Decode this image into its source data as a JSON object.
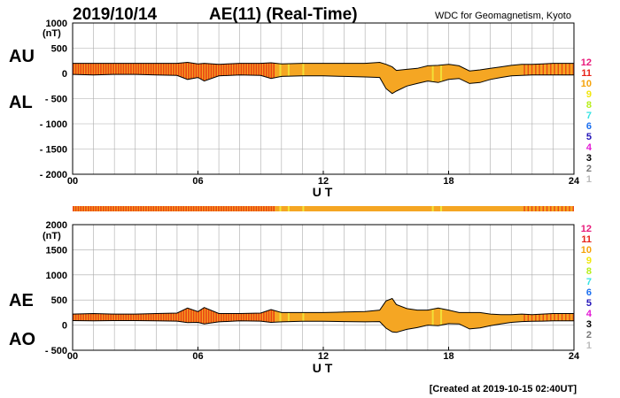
{
  "header": {
    "date": "2019/10/14",
    "title": "AE(11) (Real-Time)",
    "source": "WDC for Geomagnetism, Kyoto"
  },
  "footer": {
    "created": "[Created at 2019-10-15 02:40UT]"
  },
  "legend": {
    "items": [
      {
        "label": "12",
        "color": "#e8197a"
      },
      {
        "label": "11",
        "color": "#e8231a"
      },
      {
        "label": "10",
        "color": "#f5a30c"
      },
      {
        "label": "9",
        "color": "#f2e70e"
      },
      {
        "label": "8",
        "color": "#b7ee1a"
      },
      {
        "label": "7",
        "color": "#37e3e3"
      },
      {
        "label": "6",
        "color": "#1b6ff0"
      },
      {
        "label": "5",
        "color": "#2414b8"
      },
      {
        "label": "4",
        "color": "#e31ad5"
      },
      {
        "label": "3",
        "color": "#000000"
      },
      {
        "label": "2",
        "color": "#777777"
      },
      {
        "label": "1",
        "color": "#bbbbbb"
      }
    ]
  },
  "colors": {
    "fill_main": "#f5a623",
    "stripe_red": "#e82f10",
    "stripe_yellow": "#f2e53a",
    "grid": "#aaaaaa"
  },
  "chart_data": [
    {
      "type": "area",
      "panel": "AU/AL",
      "labels": {
        "upper": "AU",
        "lower": "AL"
      },
      "unit": "(nT)",
      "xlabel": "U T",
      "x_ticks": [
        "00",
        "06",
        "12",
        "18",
        "24"
      ],
      "xlim": [
        0,
        24
      ],
      "ylim": [
        -2000,
        1000
      ],
      "y_ticks": [
        1000,
        500,
        0,
        -500,
        -1000,
        -1500,
        -2000
      ],
      "y_tick_labels": [
        "1000",
        "500",
        "0",
        "- 500",
        "- 1000",
        "- 1500",
        "- 2000"
      ],
      "x_hours": [
        0,
        1,
        2,
        3,
        4,
        5,
        5.5,
        6,
        6.3,
        7,
        8,
        9,
        9.5,
        10,
        11,
        12,
        13,
        14,
        14.7,
        15,
        15.3,
        15.5,
        16,
        16.5,
        17,
        17.5,
        18,
        18.5,
        19,
        19.5,
        20,
        20.5,
        21,
        21.5,
        22,
        22.5,
        23,
        23.5,
        24
      ],
      "series": [
        {
          "name": "AU",
          "values": [
            200,
            200,
            200,
            200,
            200,
            200,
            220,
            190,
            200,
            180,
            200,
            200,
            210,
            190,
            200,
            200,
            200,
            200,
            220,
            180,
            130,
            60,
            80,
            100,
            150,
            160,
            180,
            150,
            50,
            70,
            100,
            130,
            160,
            180,
            180,
            190,
            200,
            200,
            200
          ]
        },
        {
          "name": "AL",
          "values": [
            -20,
            -30,
            -20,
            -20,
            -30,
            -40,
            -120,
            -80,
            -150,
            -50,
            -30,
            -40,
            -100,
            -60,
            -50,
            -50,
            -60,
            -70,
            -80,
            -300,
            -400,
            -350,
            -250,
            -200,
            -150,
            -180,
            -120,
            -100,
            -200,
            -180,
            -120,
            -80,
            -50,
            -40,
            -30,
            -30,
            -30,
            -30,
            -30
          ]
        }
      ]
    },
    {
      "type": "area",
      "panel": "AE/AO",
      "labels": {
        "upper": "AE",
        "lower": "AO"
      },
      "unit": "(nT)",
      "xlabel": "U T",
      "x_ticks": [
        "00",
        "06",
        "12",
        "18",
        "24"
      ],
      "xlim": [
        0,
        24
      ],
      "ylim": [
        -500,
        2000
      ],
      "y_ticks": [
        2000,
        1500,
        1000,
        500,
        0,
        -500
      ],
      "y_tick_labels": [
        "2000",
        "1500",
        "1000",
        "500",
        "0",
        "- 500"
      ],
      "x_hours": [
        0,
        1,
        2,
        3,
        4,
        5,
        5.5,
        6,
        6.3,
        7,
        8,
        9,
        9.5,
        10,
        11,
        12,
        13,
        14,
        14.7,
        15,
        15.3,
        15.5,
        16,
        16.5,
        17,
        17.5,
        18,
        18.5,
        19,
        19.5,
        20,
        20.5,
        21,
        21.5,
        22,
        22.5,
        23,
        23.5,
        24
      ],
      "series": [
        {
          "name": "AE",
          "values": [
            220,
            230,
            220,
            220,
            230,
            240,
            340,
            270,
            350,
            230,
            230,
            240,
            310,
            250,
            250,
            250,
            260,
            270,
            300,
            480,
            530,
            410,
            330,
            300,
            300,
            340,
            300,
            250,
            250,
            250,
            220,
            210,
            210,
            220,
            210,
            220,
            230,
            230,
            230
          ]
        },
        {
          "name": "AO",
          "values": [
            90,
            85,
            90,
            90,
            85,
            80,
            50,
            55,
            25,
            65,
            85,
            80,
            55,
            65,
            75,
            75,
            70,
            65,
            70,
            -60,
            -135,
            -145,
            -85,
            -50,
            0,
            -10,
            30,
            25,
            -75,
            -55,
            -10,
            25,
            55,
            70,
            75,
            80,
            85,
            85,
            85
          ]
        }
      ]
    }
  ]
}
